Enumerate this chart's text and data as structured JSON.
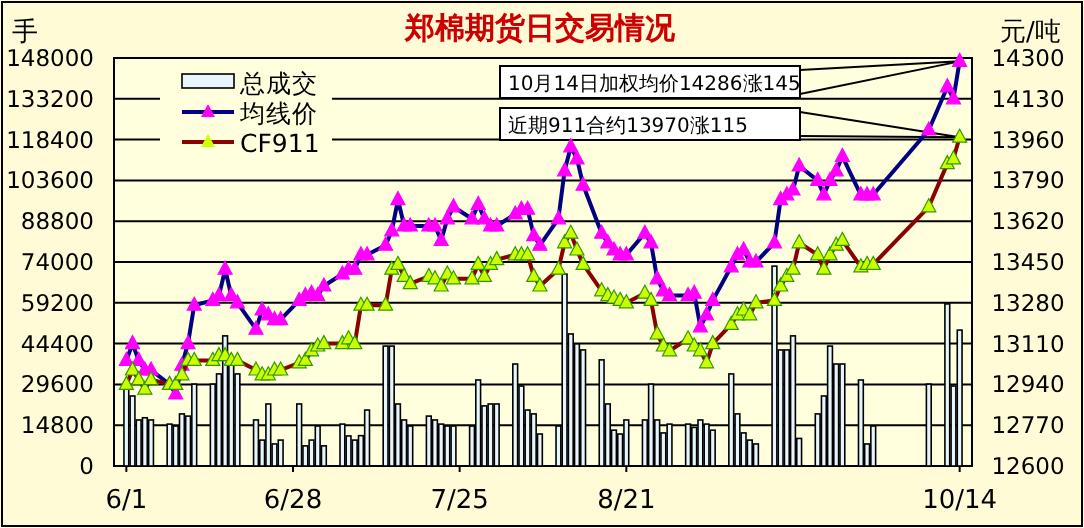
{
  "chart_data": {
    "type": "bar",
    "title": "郑棉期货日交易情况",
    "ylabel": "手",
    "y2label": "元/吨",
    "x": [
      "--06-01",
      "--06-02",
      "--06-03",
      "--06-04",
      "--06-05",
      "--06-08",
      "--06-09",
      "--06-10",
      "--06-11",
      "--06-12",
      "--06-15",
      "--06-16",
      "--06-17",
      "--06-18",
      "--06-19",
      "--06-22",
      "--06-23",
      "--06-24",
      "--06-25",
      "--06-26",
      "--06-29",
      "--06-30",
      "--07-01",
      "--07-02",
      "--07-03",
      "--07-06",
      "--07-07",
      "--07-08",
      "--07-09",
      "--07-10",
      "--07-13",
      "--07-14",
      "--07-15",
      "--07-16",
      "--07-17",
      "--07-20",
      "--07-21",
      "--07-22",
      "--07-23",
      "--07-24",
      "--07-27",
      "--07-28",
      "--07-29",
      "--07-30",
      "--07-31",
      "--08-03",
      "--08-04",
      "--08-05",
      "--08-06",
      "--08-07",
      "--08-10",
      "--08-11",
      "--08-12",
      "--08-13",
      "--08-14",
      "--08-17",
      "--08-18",
      "--08-19",
      "--08-20",
      "--08-21",
      "--08-24",
      "--08-25",
      "--08-26",
      "--08-27",
      "--08-28",
      "--08-31",
      "--09-01",
      "--09-02",
      "--09-03",
      "--09-04",
      "--09-07",
      "--09-08",
      "--09-09",
      "--09-10",
      "--09-11",
      "--09-14",
      "--09-15",
      "--09-16",
      "--09-17",
      "--09-18",
      "--09-21",
      "--09-22",
      "--09-23",
      "--09-24",
      "--09-25",
      "--09-28",
      "--09-29",
      "--09-30",
      "--10-09",
      "--10-12",
      "--10-13",
      "--10-14"
    ],
    "series": [
      {
        "name": "总成交",
        "axis": "y",
        "color": "#e6f6fc",
        "values": [
          29700,
          25400,
          16700,
          17500,
          16700,
          15200,
          14500,
          18900,
          18100,
          29700,
          29700,
          33400,
          47200,
          37000,
          33400,
          16700,
          9400,
          22500,
          8000,
          9400,
          22500,
          7300,
          9400,
          14500,
          7300,
          15200,
          10900,
          9400,
          11000,
          20300,
          43500,
          43500,
          22500,
          16700,
          14500,
          18100,
          16700,
          15200,
          14500,
          14500,
          14500,
          31200,
          21800,
          22500,
          22500,
          37000,
          29000,
          20300,
          18900,
          11600,
          14500,
          69600,
          47900,
          44300,
          42100,
          38500,
          22500,
          13000,
          11600,
          16700,
          16700,
          29700,
          16700,
          12000,
          15200,
          15200,
          14000,
          16700,
          15200,
          13000,
          33400,
          18900,
          12000,
          9400,
          8000,
          72500,
          42100,
          42100,
          47200,
          10000,
          18900,
          25400,
          43500,
          37000,
          37000,
          31200,
          8000,
          14500,
          29700,
          58800,
          29000,
          49300
        ]
      },
      {
        "name": "均线价",
        "type": "line",
        "axis": "y2",
        "color": "#000080",
        "values": [
          13040,
          13110,
          13040,
          13000,
          13000,
          12940,
          12900,
          13020,
          13110,
          13270,
          13290,
          13310,
          13420,
          13310,
          13280,
          13170,
          13250,
          13230,
          13210,
          13210,
          13290,
          13310,
          13320,
          13310,
          13350,
          13400,
          13420,
          13420,
          13480,
          13480,
          13520,
          13580,
          13710,
          13600,
          13600,
          13600,
          13600,
          13540,
          13630,
          13680,
          13630,
          13690,
          13630,
          13600,
          13600,
          13650,
          13670,
          13670,
          13560,
          13520,
          13630,
          13830,
          13930,
          13880,
          13770,
          13570,
          13530,
          13500,
          13480,
          13480,
          13570,
          13530,
          13380,
          13330,
          13310,
          13310,
          13320,
          13180,
          13230,
          13290,
          13430,
          13480,
          13500,
          13450,
          13450,
          13530,
          13710,
          13730,
          13750,
          13850,
          13790,
          13730,
          13790,
          13830,
          13890,
          13730,
          13730,
          13730,
          14000,
          14180,
          14130,
          14286
        ]
      },
      {
        "name": "CF911",
        "type": "line",
        "axis": "y2",
        "color": "#8b0000",
        "values": [
          12940,
          13000,
          12960,
          12920,
          12960,
          12940,
          12940,
          12980,
          13040,
          13040,
          13040,
          13060,
          13060,
          13040,
          13040,
          13000,
          12980,
          12980,
          13000,
          13000,
          13030,
          13040,
          13080,
          13100,
          13110,
          13110,
          13130,
          13110,
          13270,
          13270,
          13270,
          13420,
          13440,
          13390,
          13360,
          13390,
          13380,
          13350,
          13400,
          13380,
          13380,
          13440,
          13390,
          13440,
          13460,
          13480,
          13480,
          13480,
          13390,
          13350,
          13420,
          13530,
          13570,
          13500,
          13440,
          13330,
          13310,
          13300,
          13290,
          13280,
          13320,
          13290,
          13150,
          13100,
          13080,
          13130,
          13100,
          13080,
          13030,
          13110,
          13190,
          13230,
          13250,
          13230,
          13280,
          13290,
          13350,
          13390,
          13420,
          13530,
          13480,
          13420,
          13480,
          13520,
          13540,
          13430,
          13440,
          13440,
          13680,
          13860,
          13880,
          13970
        ]
      }
    ],
    "xlim": [
      "--05-30",
      "--10-16"
    ],
    "xticks": [
      {
        "value": "--06-01",
        "label": "6/1"
      },
      {
        "value": "--06-28",
        "label": "6/28"
      },
      {
        "value": "--07-25",
        "label": "7/25"
      },
      {
        "value": "--08-21",
        "label": "8/21"
      },
      {
        "value": "--10-14",
        "label": "10/14"
      }
    ],
    "ylim": [
      0,
      148000
    ],
    "yticks": [
      0,
      14800,
      29600,
      44400,
      59200,
      74000,
      88800,
      103600,
      118400,
      133200,
      148000
    ],
    "y2lim": [
      12600,
      14300
    ],
    "y2ticks": [
      12600,
      12770,
      12940,
      13110,
      13280,
      13450,
      13620,
      13790,
      13960,
      14130,
      14300
    ],
    "grid": "y",
    "legend": "top left",
    "marker": "triangle",
    "annotations": [
      "10月14日加权均价14286涨145",
      "近期911合约13970涨115"
    ]
  }
}
